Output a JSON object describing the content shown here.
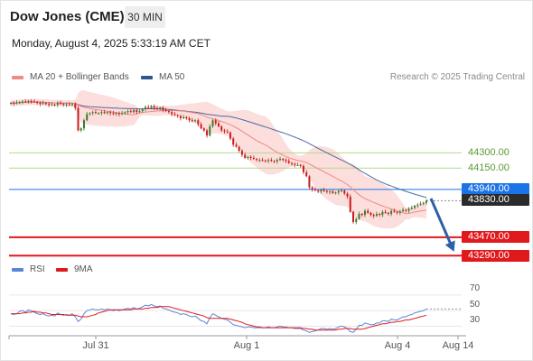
{
  "header": {
    "title": "Dow Jones (CME)",
    "timeframe": "30 MIN"
  },
  "datetime": "Monday, August 4, 2025 5:33:19 AM CET",
  "legend": {
    "ma20": {
      "label": "MA 20 + Bollinger Bands",
      "color": "#f08a84"
    },
    "ma50": {
      "label": "MA 50",
      "color": "#2f5597"
    }
  },
  "copyright": "Research © 2025 Trading Central",
  "rsi_legend": {
    "rsi": {
      "label": "RSI",
      "color": "#5b86d6"
    },
    "ma9": {
      "label": "9MA",
      "color": "#e0191d"
    }
  },
  "levels": {
    "r2": {
      "label": "44300.00",
      "value": 44300,
      "color": "#b4d98c"
    },
    "r1": {
      "label": "44150.00",
      "value": 44150,
      "color": "#b4d98c"
    },
    "pivot": {
      "label": "43940.00",
      "value": 43940,
      "color": "#1a73e8"
    },
    "last": {
      "label": "43830.00",
      "value": 43830,
      "color": "#2b2b2b"
    },
    "s1": {
      "label": "43470.00",
      "value": 43470,
      "color": "#e0191d"
    },
    "s2": {
      "label": "43290.00",
      "value": 43290,
      "color": "#e0191d"
    }
  },
  "rsi_ticks": [
    "70",
    "50",
    "30"
  ],
  "x_labels": [
    "Jul 31",
    "Aug 1",
    "Aug 4",
    "Aug 14"
  ],
  "colors": {
    "bull": "#3d7a2b",
    "bear": "#cc1b1b",
    "band": "#fbd3d1"
  },
  "chart_data": {
    "type": "candlestick",
    "price_range": [
      43230,
      44950
    ],
    "rsi_range": [
      20,
      85
    ],
    "close": [
      44790,
      44785,
      44795,
      44800,
      44805,
      44800,
      44810,
      44805,
      44800,
      44790,
      44780,
      44790,
      44780,
      44770,
      44775,
      44770,
      44790,
      44780,
      44770,
      44775,
      44770,
      44780,
      44740,
      44520,
      44540,
      44620,
      44680,
      44690,
      44700,
      44690,
      44690,
      44700,
      44690,
      44700,
      44690,
      44680,
      44690,
      44680,
      44690,
      44700,
      44710,
      44700,
      44720,
      44700,
      44710,
      44730,
      44750,
      44740,
      44760,
      44740,
      44730,
      44745,
      44720,
      44710,
      44700,
      44680,
      44670,
      44660,
      44640,
      44650,
      44640,
      44620,
      44610,
      44620,
      44580,
      44540,
      44520,
      44470,
      44560,
      44620,
      44590,
      44560,
      44520,
      44510,
      44500,
      44440,
      44380,
      44360,
      44320,
      44280,
      44250,
      44260,
      44250,
      44240,
      44230,
      44230,
      44225,
      44220,
      44230,
      44220,
      44215,
      44230,
      44240,
      44230,
      44220,
      44200,
      44190,
      44180,
      44180,
      44170,
      44110,
      44070,
      43960,
      43940,
      43930,
      43920,
      43935,
      43925,
      43915,
      43920,
      43905,
      43910,
      43925,
      43930,
      43900,
      43870,
      43720,
      43620,
      43650,
      43700,
      43690,
      43730,
      43710,
      43690,
      43680,
      43700,
      43690,
      43720,
      43710,
      43700,
      43730,
      43720,
      43710,
      43725,
      43740,
      43730,
      43750,
      43760,
      43780,
      43790,
      43800,
      43810,
      43830
    ],
    "rsi": [
      46,
      45,
      46,
      49,
      50,
      48,
      51,
      50,
      48,
      46,
      45,
      46,
      44,
      43,
      44,
      43,
      47,
      45,
      44,
      45,
      44,
      46,
      42,
      36,
      39,
      46,
      50,
      51,
      52,
      51,
      51,
      52,
      51,
      52,
      51,
      50,
      51,
      50,
      51,
      52,
      53,
      52,
      54,
      52,
      53,
      55,
      57,
      56,
      58,
      56,
      55,
      56,
      53,
      52,
      51,
      49,
      48,
      47,
      45,
      46,
      45,
      43,
      42,
      43,
      40,
      37,
      36,
      33,
      41,
      46,
      44,
      42,
      40,
      39,
      38,
      35,
      32,
      31,
      30,
      29,
      28,
      29,
      29,
      28,
      28,
      28,
      28,
      28,
      29,
      28,
      28,
      29,
      30,
      29,
      29,
      28,
      28,
      27,
      27,
      27,
      25,
      24,
      22,
      23,
      24,
      25,
      27,
      27,
      26,
      27,
      26,
      27,
      29,
      30,
      29,
      27,
      23,
      22,
      26,
      31,
      31,
      34,
      33,
      32,
      32,
      34,
      34,
      37,
      37,
      36,
      39,
      38,
      38,
      40,
      42,
      42,
      44,
      45,
      47,
      48,
      49,
      50,
      52
    ],
    "rsi_ma9": [
      46,
      46,
      46,
      46,
      47,
      47,
      48,
      48,
      49,
      48,
      48,
      47,
      47,
      46,
      45,
      45,
      45,
      45,
      45,
      44,
      44,
      44,
      44,
      43,
      42,
      42,
      42,
      43,
      44,
      45,
      47,
      48,
      49,
      50,
      51,
      51,
      51,
      51,
      51,
      51,
      51,
      51,
      52,
      52,
      52,
      52,
      53,
      53,
      54,
      54,
      54,
      55,
      55,
      55,
      55,
      54,
      53,
      52,
      51,
      50,
      49,
      48,
      47,
      46,
      45,
      44,
      43,
      41,
      40,
      40,
      40,
      40,
      40,
      40,
      40,
      39,
      38,
      37,
      36,
      35,
      33,
      32,
      31,
      30,
      29,
      29,
      28,
      28,
      28,
      28,
      28,
      28,
      28,
      28,
      28,
      28,
      28,
      28,
      28,
      28,
      27,
      27,
      26,
      26,
      25,
      25,
      25,
      25,
      25,
      25,
      25,
      25,
      26,
      26,
      27,
      27,
      27,
      26,
      26,
      26,
      26,
      27,
      28,
      29,
      30,
      31,
      32,
      33,
      33,
      34,
      35,
      35,
      36,
      36,
      37,
      38,
      38,
      39,
      40,
      41,
      42,
      43,
      44
    ]
  }
}
